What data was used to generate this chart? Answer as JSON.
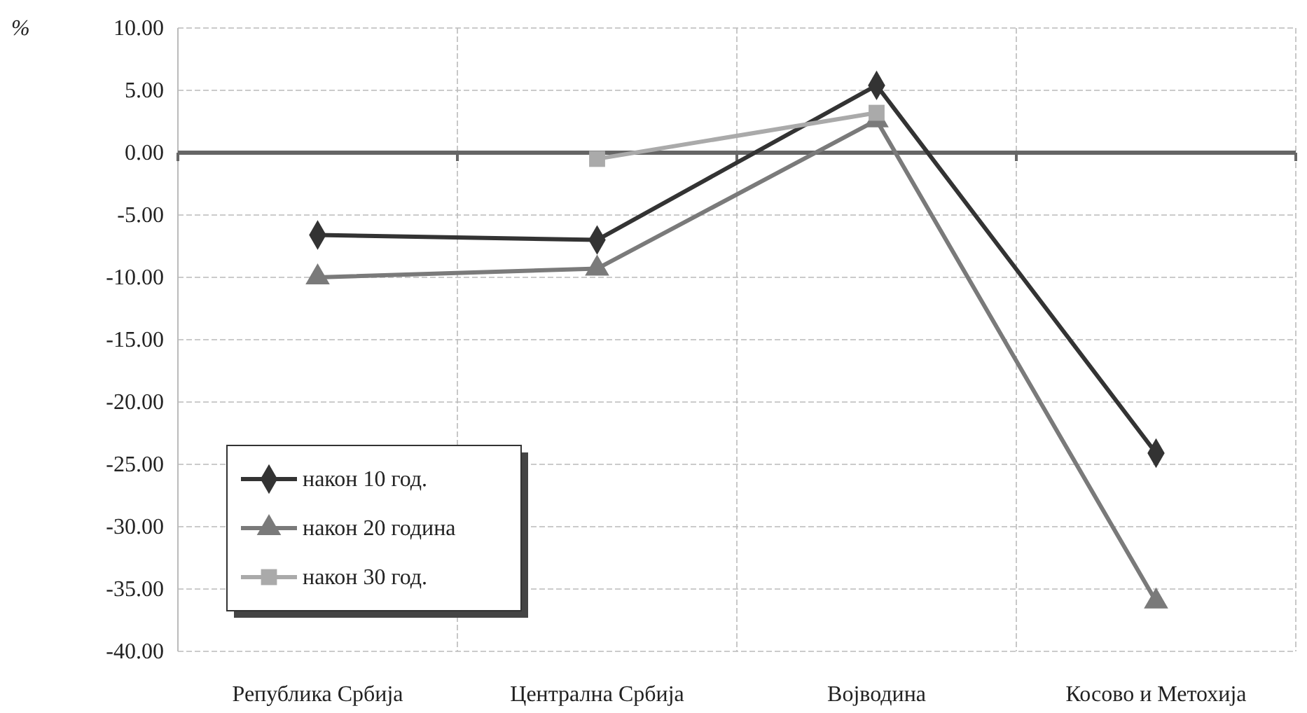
{
  "chart_data": {
    "type": "line",
    "ylabel": "%",
    "categories": [
      "Република Србија",
      "Централна Србија",
      "Војводина",
      "Косово и Метохија"
    ],
    "series": [
      {
        "name": "након 10 год.",
        "color": "#333333",
        "marker": "diamond",
        "values": [
          -6.6,
          -7.0,
          5.4,
          -24.1
        ]
      },
      {
        "name": "након 20 година",
        "color": "#7a7a7a",
        "marker": "triangle",
        "values": [
          -10.0,
          -9.3,
          2.6,
          -36.0
        ]
      },
      {
        "name": "након 30 год.",
        "color": "#aaaaaa",
        "marker": "square",
        "values": [
          null,
          -0.5,
          3.2,
          null
        ]
      }
    ],
    "ylim": [
      -40,
      10
    ],
    "yticks": [
      {
        "value": 10,
        "label": "10.00"
      },
      {
        "value": 5,
        "label": "5.00"
      },
      {
        "value": 0,
        "label": "0.00"
      },
      {
        "value": -5,
        "label": "-5.00"
      },
      {
        "value": -10,
        "label": "-10.00"
      },
      {
        "value": -15,
        "label": "-15.00"
      },
      {
        "value": -20,
        "label": "-20.00"
      },
      {
        "value": -25,
        "label": "-25.00"
      },
      {
        "value": -30,
        "label": "-30.00"
      },
      {
        "value": -35,
        "label": "-35.00"
      },
      {
        "value": -40,
        "label": "-40.00"
      }
    ],
    "grid": true,
    "legend": "bottom left",
    "line_style": "solid"
  }
}
